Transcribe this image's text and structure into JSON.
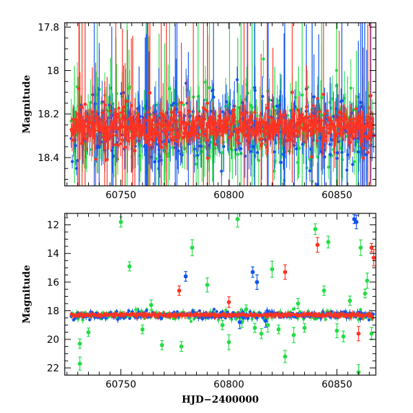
{
  "chart_data": [
    {
      "type": "scatter",
      "title": "",
      "xlabel": "",
      "ylabel": "Magnitude",
      "xlim": [
        60724,
        60868
      ],
      "ylim": [
        18.53,
        17.78
      ],
      "y_inverted": true,
      "x_ticks": [
        60750,
        60800,
        60850
      ],
      "x_tick_labels": [
        "60750",
        "60800",
        "60850"
      ],
      "y_ticks": [
        17.8,
        18,
        18.2,
        18.4
      ],
      "y_tick_labels": [
        "17.8",
        "18",
        "18.2",
        "18.4"
      ],
      "grid": false,
      "series": [
        {
          "color": "#22dd44",
          "baseline": 18.26,
          "spread": 0.09,
          "err": 0.08,
          "cadence_days": 0.5
        },
        {
          "color": "#1155ee",
          "baseline": 18.27,
          "spread": 0.08,
          "err": 0.07,
          "cadence_days": 0.5
        },
        {
          "color": "#ff3322",
          "baseline": 18.26,
          "spread": 0.035,
          "err": 0.04,
          "cadence_days": 0.25
        }
      ]
    },
    {
      "type": "scatter",
      "title": "",
      "xlabel": "HJD−2400000",
      "ylabel": "Magnitude",
      "xlim": [
        60724,
        60868
      ],
      "ylim": [
        22.5,
        11.2
      ],
      "y_inverted": true,
      "x_ticks": [
        60750,
        60800,
        60850
      ],
      "x_tick_labels": [
        "60750",
        "60800",
        "60850"
      ],
      "y_ticks": [
        12,
        14,
        16,
        18,
        20,
        22
      ],
      "y_tick_labels": [
        "12",
        "14",
        "16",
        "18",
        "20",
        "22"
      ],
      "grid": false,
      "series": [
        {
          "color": "#22dd44",
          "baseline": 18.3,
          "spread": 0.15,
          "outliers": [
            [
              60731,
              21.7
            ],
            [
              60731,
              20.3
            ],
            [
              60735,
              19.5
            ],
            [
              60750,
              11.8
            ],
            [
              60754,
              14.9
            ],
            [
              60760,
              19.3
            ],
            [
              60764,
              17.6
            ],
            [
              60769,
              20.4
            ],
            [
              60778,
              20.5
            ],
            [
              60783,
              13.6
            ],
            [
              60790,
              16.2
            ],
            [
              60797,
              19.0
            ],
            [
              60800,
              20.2
            ],
            [
              60804,
              11.6
            ],
            [
              60806,
              18.8
            ],
            [
              60808,
              17.9
            ],
            [
              60812,
              19.2
            ],
            [
              60815,
              19.6
            ],
            [
              60818,
              19.0
            ],
            [
              60820,
              15.1
            ],
            [
              60823,
              19.3
            ],
            [
              60826,
              21.2
            ],
            [
              60830,
              19.7
            ],
            [
              60832,
              17.5
            ],
            [
              60835,
              19.2
            ],
            [
              60840,
              12.3
            ],
            [
              60844,
              16.6
            ],
            [
              60846,
              13.2
            ],
            [
              60850,
              19.4
            ],
            [
              60853,
              19.8
            ],
            [
              60856,
              17.3
            ],
            [
              60860,
              22.3
            ],
            [
              60861,
              13.6
            ],
            [
              60863,
              16.8
            ],
            [
              60864,
              15.9
            ],
            [
              60866,
              19.6
            ]
          ]
        },
        {
          "color": "#1155ee",
          "baseline": 18.3,
          "spread": 0.12,
          "outliers": [
            [
              60780,
              15.6
            ],
            [
              60805,
              18.8
            ],
            [
              60811,
              15.3
            ],
            [
              60813,
              16.0
            ],
            [
              60817,
              18.7
            ],
            [
              60858,
              11.6
            ],
            [
              60859,
              11.8
            ]
          ]
        },
        {
          "color": "#ff3322",
          "baseline": 18.3,
          "spread": 0.05,
          "outliers": [
            [
              60777,
              16.6
            ],
            [
              60800,
              17.4
            ],
            [
              60826,
              15.3
            ],
            [
              60841,
              13.4
            ],
            [
              60860,
              19.6
            ],
            [
              60866,
              13.6
            ],
            [
              60867,
              14.3
            ]
          ]
        }
      ]
    }
  ]
}
